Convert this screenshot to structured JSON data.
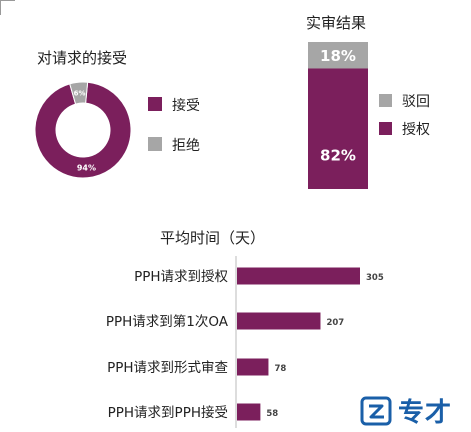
{
  "colors": {
    "accept": "#7b1f5c",
    "reject": "#a6a6a6",
    "text": "#222222"
  },
  "chart_data": [
    {
      "type": "pie",
      "title": "对请求的接受",
      "series": [
        {
          "name": "接受",
          "value": 94,
          "label": "94%"
        },
        {
          "name": "拒绝",
          "value": 6,
          "label": "6%"
        }
      ],
      "legend": "right"
    },
    {
      "type": "bar",
      "title": "实审结果",
      "stacked": true,
      "series": [
        {
          "name": "驳回",
          "value": 18,
          "label": "18%"
        },
        {
          "name": "授权",
          "value": 82,
          "label": "82%"
        }
      ],
      "legend": "right"
    },
    {
      "type": "bar",
      "orientation": "horizontal",
      "title": "平均时间（天）",
      "categories": [
        "PPH请求到授权",
        "PPH请求到第1次OA",
        "PPH请求到形式审查",
        "PPH请求到PPH接受"
      ],
      "values": [
        305,
        207,
        78,
        58
      ]
    }
  ],
  "logo": {
    "text": "专才"
  }
}
